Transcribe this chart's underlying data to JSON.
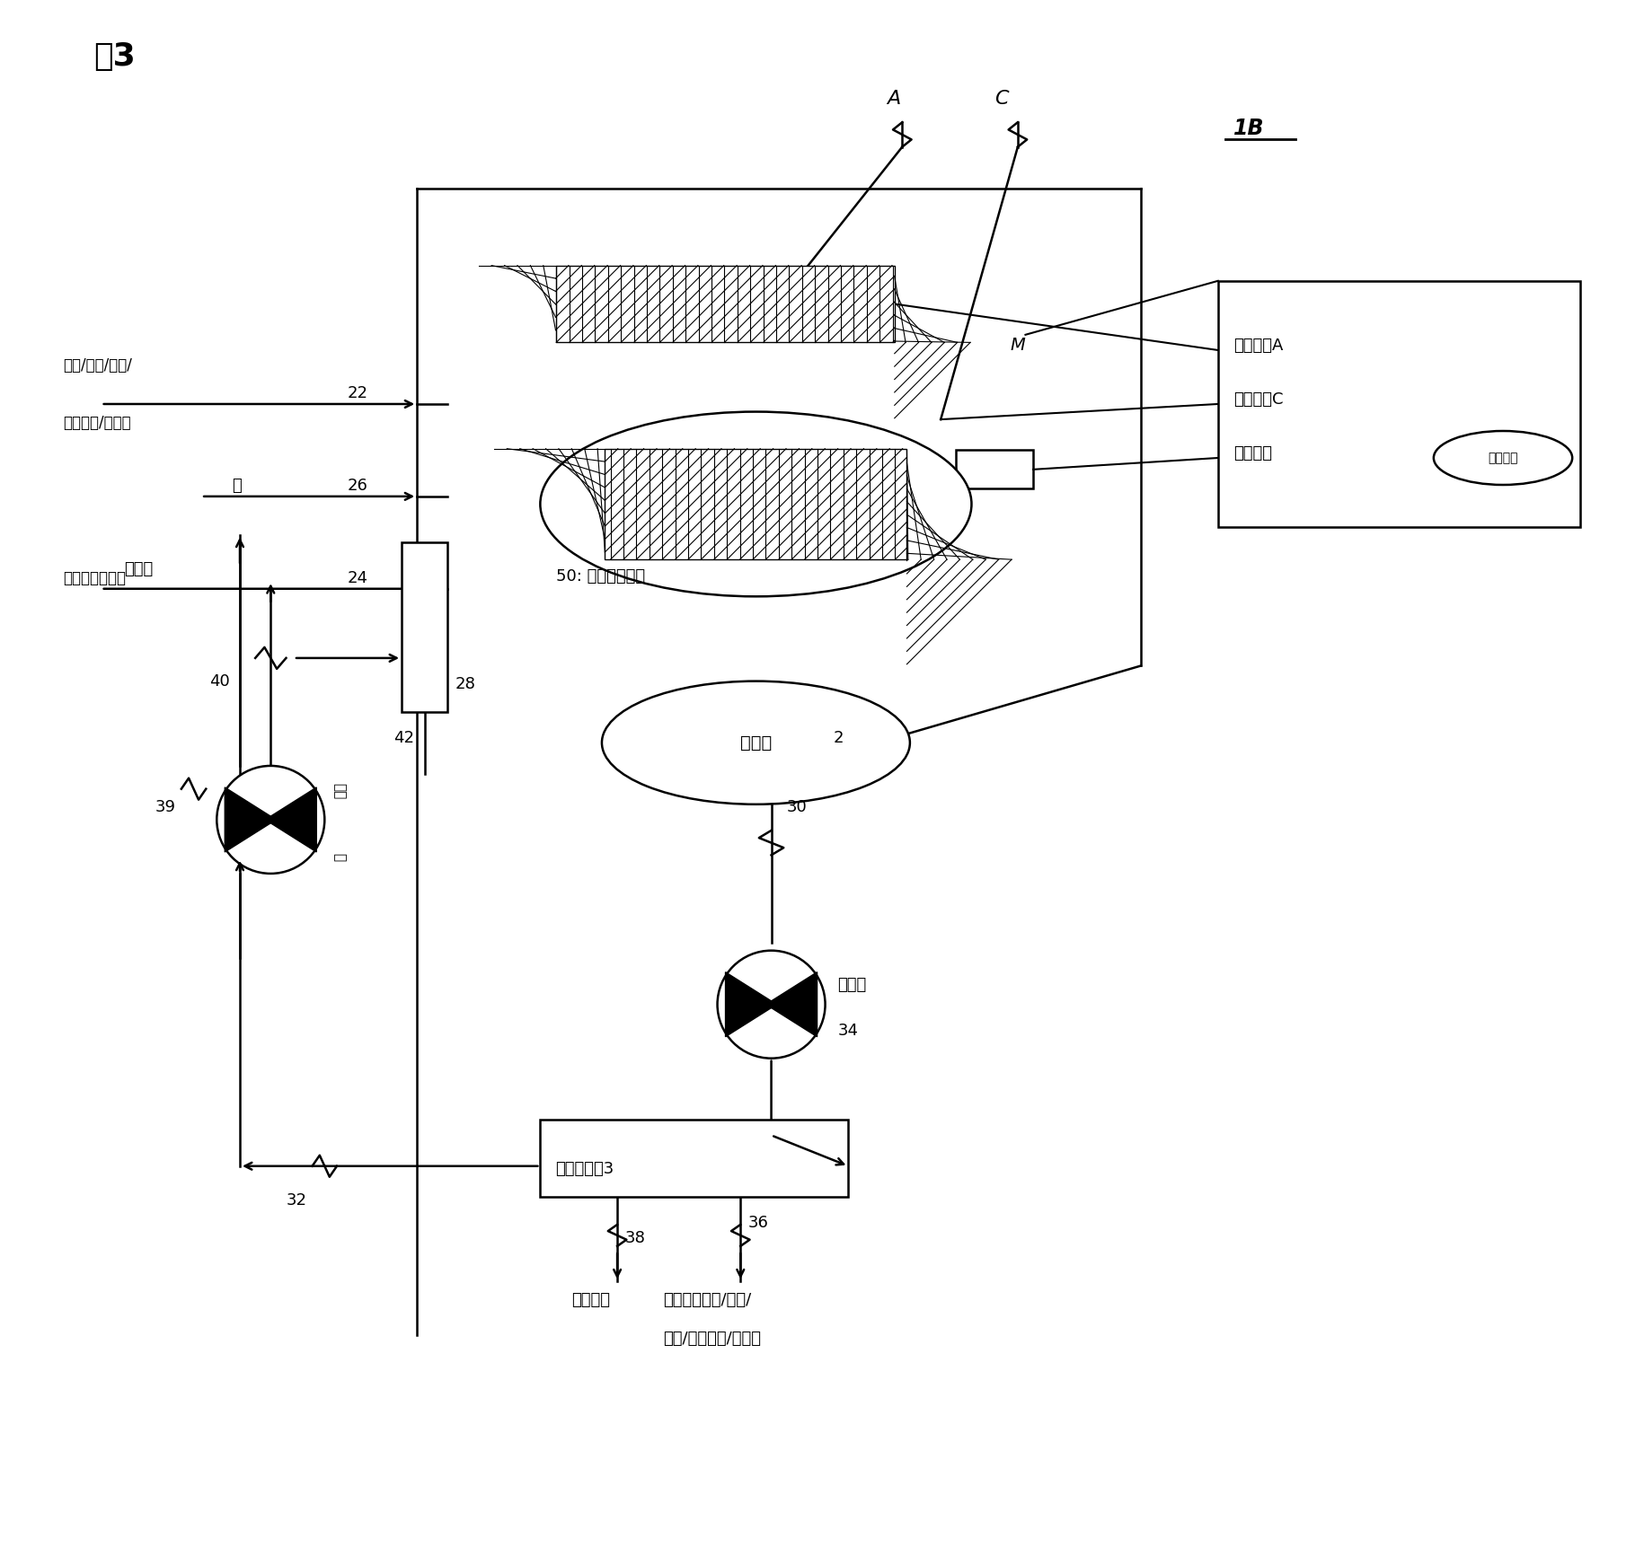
{
  "title": "图3",
  "bg_color": "#ffffff",
  "figsize": [
    18.2,
    17.23
  ],
  "dpi": 100,
  "lw": 1.8,
  "labels": {
    "title": "图3",
    "1B": "1B",
    "A": "A",
    "C": "C",
    "M": "M",
    "label_22": "22",
    "label_26": "26",
    "label_24": "24",
    "label_28": "28",
    "label_40": "40",
    "label_42": "42",
    "label_39": "39",
    "label_30": "30",
    "label_2": "2",
    "label_34": "34",
    "label_32": "32",
    "label_36": "36",
    "label_38": "38",
    "soil_input1": "土壤/污泥/淤泥/",
    "soil_input2": "焚烧灰分/沉积物",
    "water": "水",
    "acid_base": "酸性或碱性物质",
    "circ_liquid": "循环液",
    "circ_pump": "循环\n泵",
    "mixer": "混合机",
    "cathode50": "50: 阴极保护装置",
    "anode_A": "阳极电极A",
    "cathode_C": "阴极电极C",
    "ref_elec": "参比电极",
    "power": "电源装置",
    "sep": "固液分离机3",
    "slurry_pump": "浆浆泵",
    "residual": "剩余排水",
    "clean_soil1": "清洗脱水土壤/污泥/",
    "clean_soil2": "淤泥/焚烧灰分/沉积物"
  }
}
